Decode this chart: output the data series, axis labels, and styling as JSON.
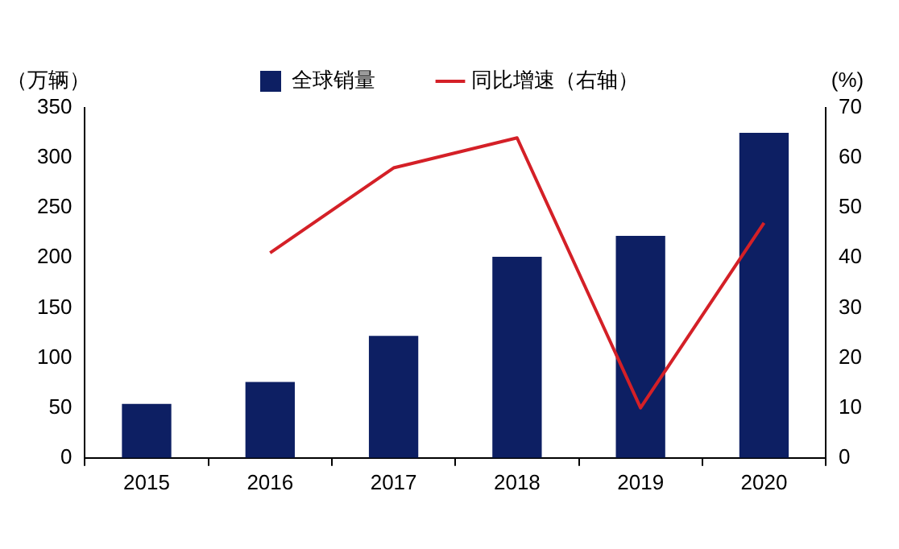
{
  "chart_data": {
    "type": "bar",
    "categories": [
      "2015",
      "2016",
      "2017",
      "2018",
      "2019",
      "2020"
    ],
    "ylabel": "（万辆）",
    "y2label": "(%)",
    "series": [
      {
        "name": "全球销量",
        "color": "#0d1f63",
        "values": [
          54,
          76,
          122,
          201,
          222,
          325
        ]
      },
      {
        "name": "同比增速（右轴）",
        "type": "line",
        "axis": "y2",
        "color": "#d42027",
        "marker": "none",
        "values": [
          null,
          41,
          58,
          64,
          10,
          47
        ]
      }
    ],
    "ylim": [
      0,
      350
    ],
    "yticks": [
      0,
      50,
      100,
      150,
      200,
      250,
      300,
      350
    ],
    "y2lim": [
      0,
      70
    ],
    "y2ticks": [
      0,
      10,
      20,
      30,
      40,
      50,
      60,
      70
    ],
    "grid": false,
    "legend": "top"
  }
}
